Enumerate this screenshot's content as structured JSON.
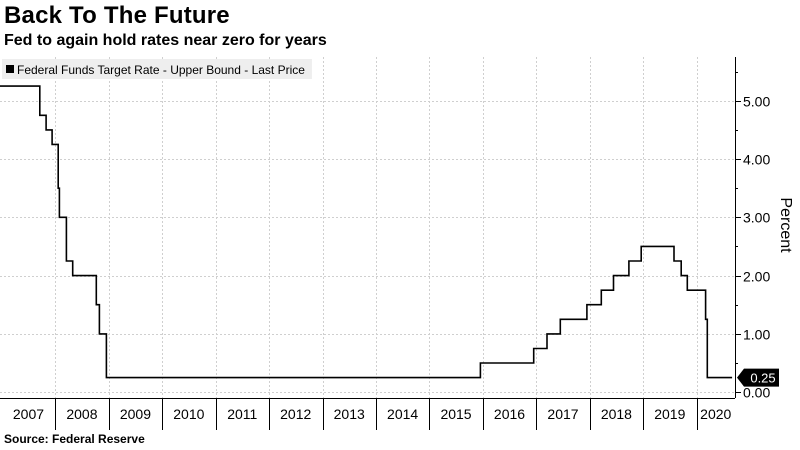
{
  "header": {
    "title": "Back To The Future",
    "subtitle": "Fed to again hold rates near zero for years"
  },
  "footer": {
    "source": "Source: Federal Reserve"
  },
  "colors": {
    "line": "#000000",
    "grid": "#cfcfcf",
    "legend_bg": "#eeeeee",
    "last_badge": "#000000"
  },
  "chart_data": {
    "type": "line",
    "title": "Back To The Future",
    "subtitle": "Fed to again hold rates near zero for years",
    "ylabel": "Percent",
    "xlabel": "",
    "y_axis_side": "right",
    "ylim": [
      -0.1,
      5.75
    ],
    "xlim": [
      "2006-12-20",
      "2020-09-20"
    ],
    "yticks": [
      0,
      1,
      2,
      3,
      4,
      5
    ],
    "ytick_labels": [
      "0.00",
      "1.00",
      "2.00",
      "3.00",
      "4.00",
      "5.00"
    ],
    "xtick_labels": [
      "2007",
      "2008",
      "2009",
      "2010",
      "2011",
      "2012",
      "2013",
      "2014",
      "2015",
      "2016",
      "2017",
      "2018",
      "2019",
      "2020"
    ],
    "grid": true,
    "legend_position": "top-left",
    "last_value_label": "0.25",
    "series": [
      {
        "name": "Federal Funds Target Rate - Upper Bound - Last Price",
        "step": true,
        "points": [
          [
            "2006-12-20",
            5.25
          ],
          [
            "2007-09-18",
            4.75
          ],
          [
            "2007-10-31",
            4.5
          ],
          [
            "2007-12-11",
            4.25
          ],
          [
            "2008-01-22",
            3.5
          ],
          [
            "2008-01-30",
            3.0
          ],
          [
            "2008-03-18",
            2.25
          ],
          [
            "2008-04-30",
            2.0
          ],
          [
            "2008-10-08",
            1.5
          ],
          [
            "2008-10-29",
            1.0
          ],
          [
            "2008-12-16",
            0.25
          ],
          [
            "2015-12-16",
            0.5
          ],
          [
            "2016-12-14",
            0.75
          ],
          [
            "2017-03-15",
            1.0
          ],
          [
            "2017-06-14",
            1.25
          ],
          [
            "2017-12-13",
            1.5
          ],
          [
            "2018-03-21",
            1.75
          ],
          [
            "2018-06-13",
            2.0
          ],
          [
            "2018-09-26",
            2.25
          ],
          [
            "2018-12-19",
            2.5
          ],
          [
            "2019-07-31",
            2.25
          ],
          [
            "2019-09-18",
            2.0
          ],
          [
            "2019-10-30",
            1.75
          ],
          [
            "2020-03-03",
            1.25
          ],
          [
            "2020-03-15",
            0.25
          ],
          [
            "2020-08-31",
            0.25
          ]
        ]
      }
    ]
  }
}
